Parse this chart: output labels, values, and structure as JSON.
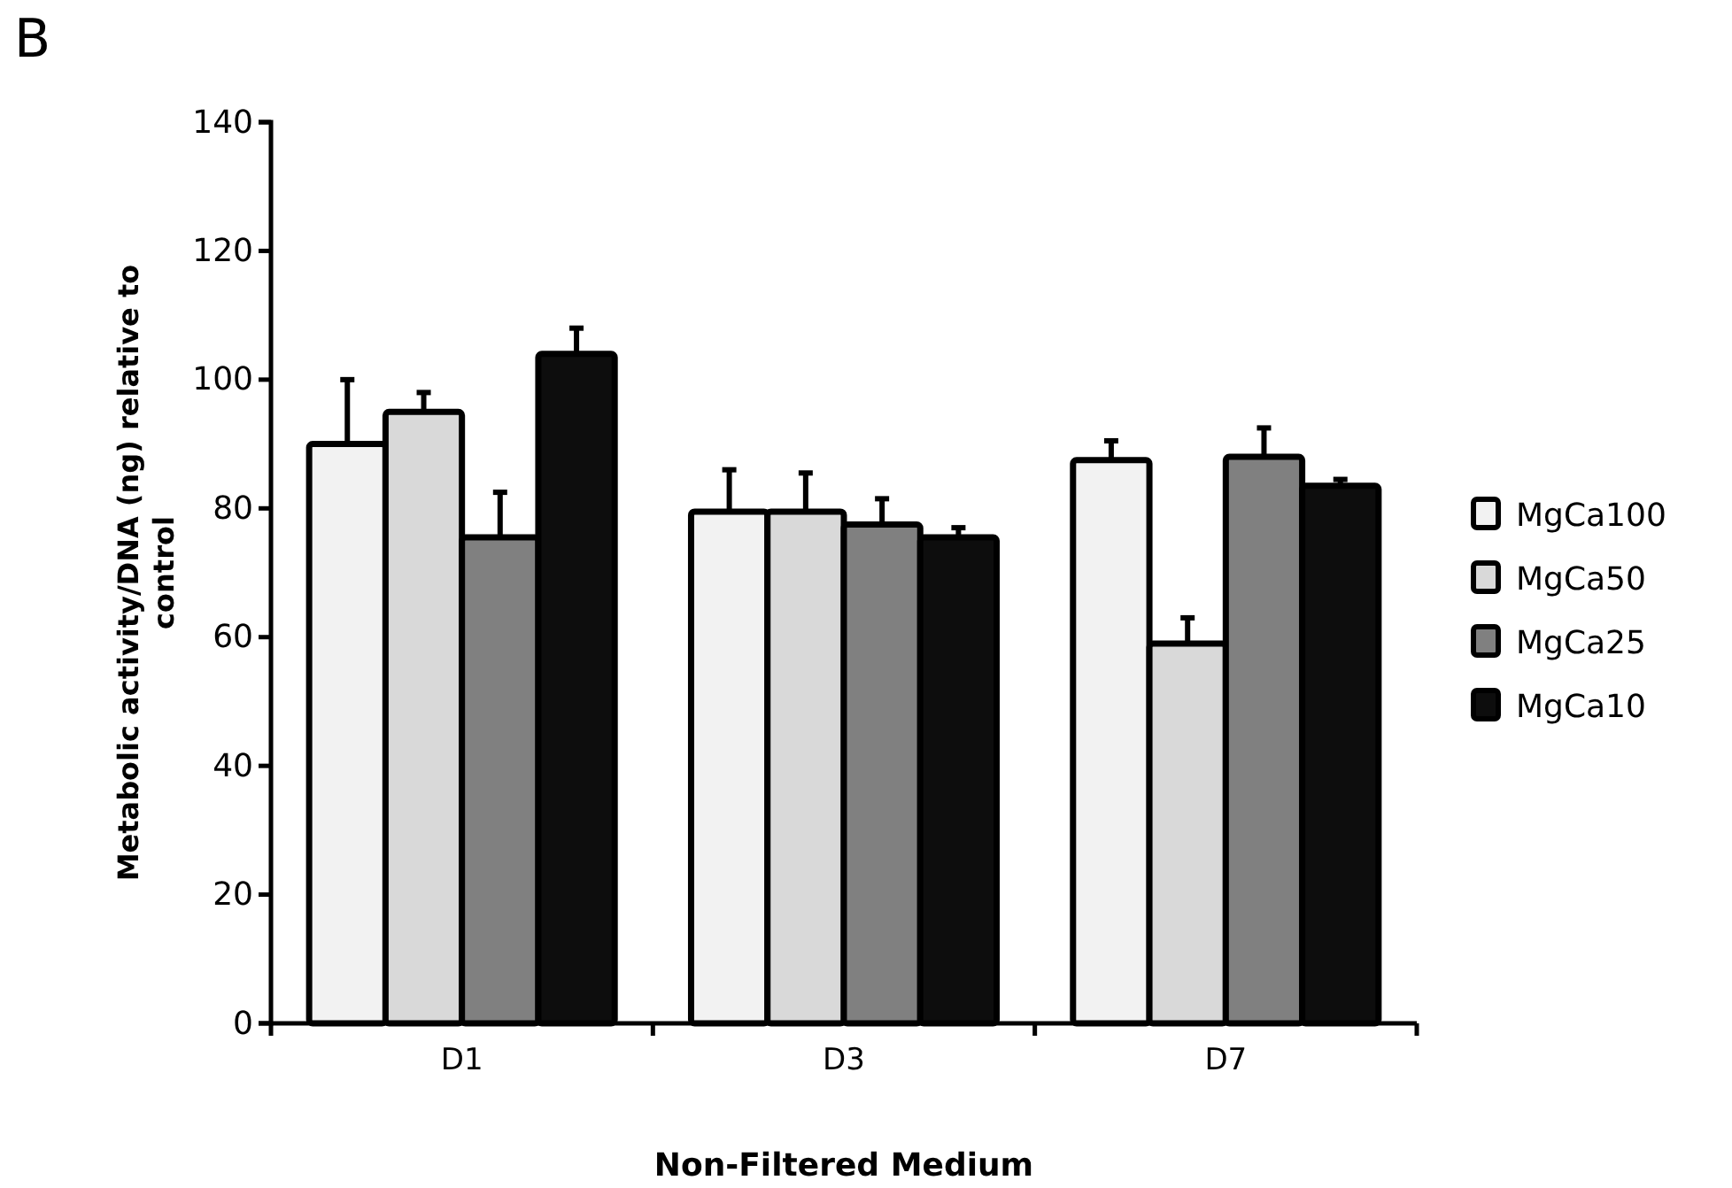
{
  "chart_data": {
    "type": "bar",
    "xlabel": "Non-Filtered Medium",
    "ylabel": "Metabolic activity/DNA (ng) relative to control",
    "annotations": [
      "B"
    ],
    "categories": [
      "D1",
      "D3",
      "D7"
    ],
    "series": [
      {
        "name": "MgCa100",
        "color": "#f2f2f2",
        "values": [
          90,
          79.5,
          87.5
        ],
        "errors": [
          [
            90,
            100
          ],
          [
            79.5,
            86
          ],
          [
            87.5,
            90.5
          ]
        ]
      },
      {
        "name": "MgCa50",
        "color": "#d9d9d9",
        "values": [
          95,
          79.5,
          59
        ],
        "errors": [
          [
            95,
            98
          ],
          [
            79.5,
            85.5
          ],
          [
            59,
            63
          ]
        ]
      },
      {
        "name": "MgCa25",
        "color": "#808080",
        "values": [
          75.5,
          77.5,
          88
        ],
        "errors": [
          [
            75.5,
            82.5
          ],
          [
            77.5,
            81.5
          ],
          [
            88,
            92.5
          ]
        ]
      },
      {
        "name": "MgCa10",
        "color": "#0d0d0d",
        "values": [
          104,
          75.5,
          83.5
        ],
        "errors": [
          [
            104,
            108
          ],
          [
            75.5,
            77
          ],
          [
            83.5,
            84.5
          ]
        ]
      }
    ],
    "ylim": [
      0,
      140
    ],
    "yticks": [
      0,
      20,
      40,
      60,
      80,
      100,
      120,
      140
    ],
    "grid": false,
    "legend": "right"
  }
}
